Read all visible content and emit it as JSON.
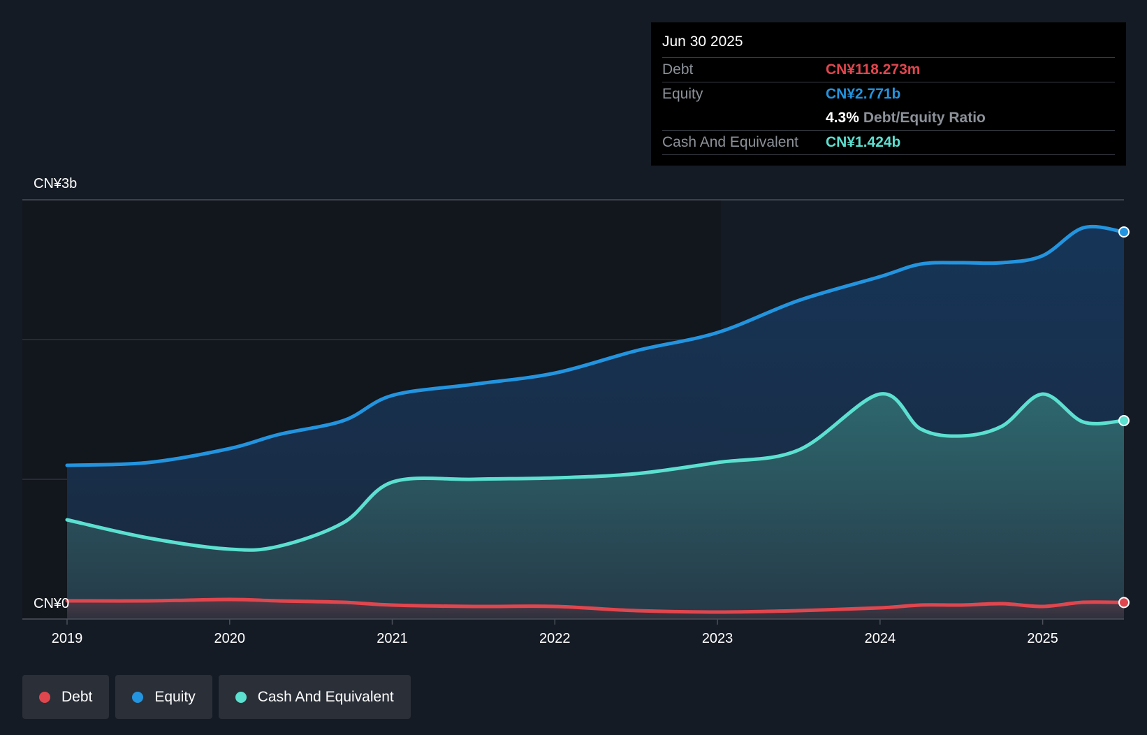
{
  "chart_data": {
    "type": "area",
    "currency_prefix": "CN¥",
    "y_labels": {
      "top": "CN¥3b",
      "bottom": "CN¥0"
    },
    "ylim": [
      0,
      3.0
    ],
    "y_unit": "billions CNY",
    "x_ticks": [
      "2019",
      "2020",
      "2021",
      "2022",
      "2023",
      "2024",
      "2025"
    ],
    "xlim": [
      2019.0,
      2025.5
    ],
    "series": [
      {
        "name": "Equity",
        "color": "#2394df",
        "points": [
          [
            2019.0,
            1.1
          ],
          [
            2019.5,
            1.12
          ],
          [
            2020.0,
            1.22
          ],
          [
            2020.3,
            1.32
          ],
          [
            2020.7,
            1.42
          ],
          [
            2021.0,
            1.6
          ],
          [
            2021.5,
            1.68
          ],
          [
            2022.0,
            1.76
          ],
          [
            2022.5,
            1.92
          ],
          [
            2023.0,
            2.05
          ],
          [
            2023.5,
            2.28
          ],
          [
            2024.0,
            2.45
          ],
          [
            2024.25,
            2.54
          ],
          [
            2024.5,
            2.55
          ],
          [
            2024.75,
            2.55
          ],
          [
            2025.0,
            2.6
          ],
          [
            2025.25,
            2.8
          ],
          [
            2025.5,
            2.77
          ]
        ]
      },
      {
        "name": "Cash And Equivalent",
        "color": "#5ce0d0",
        "points": [
          [
            2019.0,
            0.71
          ],
          [
            2019.5,
            0.58
          ],
          [
            2020.0,
            0.5
          ],
          [
            2020.3,
            0.52
          ],
          [
            2020.7,
            0.69
          ],
          [
            2021.0,
            0.98
          ],
          [
            2021.5,
            1.0
          ],
          [
            2022.0,
            1.01
          ],
          [
            2022.5,
            1.04
          ],
          [
            2023.0,
            1.12
          ],
          [
            2023.5,
            1.21
          ],
          [
            2024.0,
            1.61
          ],
          [
            2024.25,
            1.36
          ],
          [
            2024.5,
            1.31
          ],
          [
            2024.75,
            1.38
          ],
          [
            2025.0,
            1.61
          ],
          [
            2025.25,
            1.41
          ],
          [
            2025.5,
            1.42
          ]
        ]
      },
      {
        "name": "Debt",
        "color": "#e0464e",
        "points": [
          [
            2019.0,
            0.13
          ],
          [
            2019.5,
            0.13
          ],
          [
            2020.0,
            0.14
          ],
          [
            2020.3,
            0.13
          ],
          [
            2020.7,
            0.12
          ],
          [
            2021.0,
            0.1
          ],
          [
            2021.5,
            0.09
          ],
          [
            2022.0,
            0.09
          ],
          [
            2022.5,
            0.06
          ],
          [
            2023.0,
            0.05
          ],
          [
            2023.5,
            0.06
          ],
          [
            2024.0,
            0.08
          ],
          [
            2024.25,
            0.1
          ],
          [
            2024.5,
            0.1
          ],
          [
            2024.75,
            0.11
          ],
          [
            2025.0,
            0.09
          ],
          [
            2025.25,
            0.12
          ],
          [
            2025.5,
            0.118
          ]
        ]
      }
    ]
  },
  "tooltip": {
    "date": "Jun 30 2025",
    "debt_label": "Debt",
    "debt_value": "CN¥118.273m",
    "equity_label": "Equity",
    "equity_value": "CN¥2.771b",
    "ratio_value": "4.3%",
    "ratio_label": "Debt/Equity Ratio",
    "cash_label": "Cash And Equivalent",
    "cash_value": "CN¥1.424b"
  },
  "legend": [
    {
      "label": "Debt",
      "color": "#e0464e"
    },
    {
      "label": "Equity",
      "color": "#2394df"
    },
    {
      "label": "Cash And Equivalent",
      "color": "#5ce0d0"
    }
  ]
}
